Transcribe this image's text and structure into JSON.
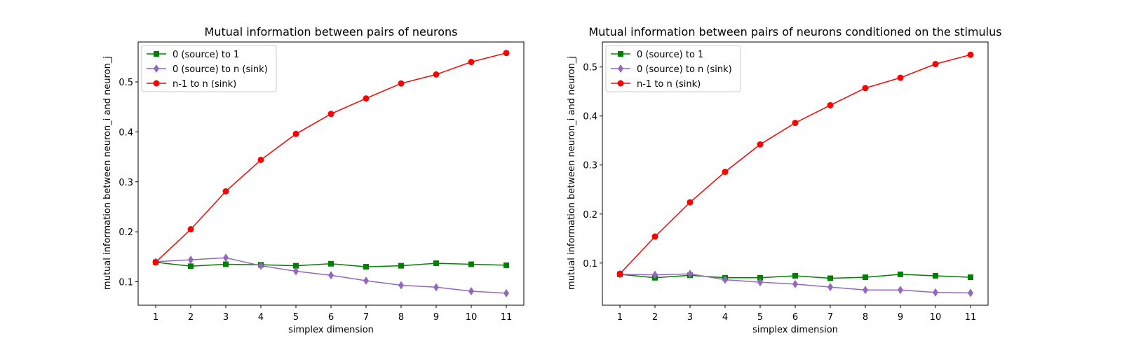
{
  "chart_data": [
    {
      "type": "line",
      "title": "Mutual information between pairs of neurons",
      "xlabel": "simplex dimension",
      "ylabel": "mutual information between neuron_i and neuron_j",
      "x": [
        1,
        2,
        3,
        4,
        5,
        6,
        7,
        8,
        9,
        10,
        11
      ],
      "xlim": [
        0.5,
        11.5
      ],
      "ylim": [
        0.053,
        0.58
      ],
      "yticks": [
        0.1,
        0.2,
        0.3,
        0.4,
        0.5
      ],
      "ytick_labels": [
        "0.1",
        "0.2",
        "0.3",
        "0.4",
        "0.5"
      ],
      "grid": false,
      "legend_position": "top-left",
      "series": [
        {
          "name": "0 (source) to 1",
          "color": "#008000",
          "marker": "square",
          "values": [
            0.139,
            0.131,
            0.135,
            0.134,
            0.132,
            0.136,
            0.13,
            0.132,
            0.137,
            0.135,
            0.133
          ]
        },
        {
          "name": "0 (source) to n (sink)",
          "color": "#9467bd",
          "marker": "diamond",
          "values": [
            0.14,
            0.144,
            0.148,
            0.132,
            0.121,
            0.113,
            0.102,
            0.093,
            0.089,
            0.081,
            0.077
          ]
        },
        {
          "name": "n-1 to n (sink)",
          "color": "#ff0000",
          "marker": "circle",
          "values": [
            0.139,
            0.205,
            0.281,
            0.344,
            0.396,
            0.436,
            0.467,
            0.497,
            0.515,
            0.54,
            0.558
          ]
        }
      ]
    },
    {
      "type": "line",
      "title": "Mutual information between pairs of neurons conditioned on the stimulus",
      "xlabel": "simplex dimension",
      "ylabel": "mutual information between neuron_i and neuron_j",
      "x": [
        1,
        2,
        3,
        4,
        5,
        6,
        7,
        8,
        9,
        10,
        11
      ],
      "xlim": [
        0.5,
        11.5
      ],
      "ylim": [
        0.014,
        0.551
      ],
      "yticks": [
        0.1,
        0.2,
        0.3,
        0.4,
        0.5
      ],
      "ytick_labels": [
        "0.1",
        "0.2",
        "0.3",
        "0.4",
        "0.5"
      ],
      "grid": false,
      "legend_position": "top-left",
      "series": [
        {
          "name": "0 (source) to 1",
          "color": "#008000",
          "marker": "square",
          "values": [
            0.077,
            0.07,
            0.075,
            0.07,
            0.07,
            0.074,
            0.069,
            0.071,
            0.077,
            0.074,
            0.071
          ]
        },
        {
          "name": "0 (source) to n (sink)",
          "color": "#9467bd",
          "marker": "diamond",
          "values": [
            0.077,
            0.076,
            0.078,
            0.066,
            0.061,
            0.057,
            0.051,
            0.045,
            0.045,
            0.04,
            0.039
          ]
        },
        {
          "name": "n-1 to n (sink)",
          "color": "#ff0000",
          "marker": "circle",
          "values": [
            0.078,
            0.154,
            0.224,
            0.286,
            0.342,
            0.386,
            0.422,
            0.457,
            0.478,
            0.506,
            0.525
          ]
        }
      ]
    }
  ]
}
